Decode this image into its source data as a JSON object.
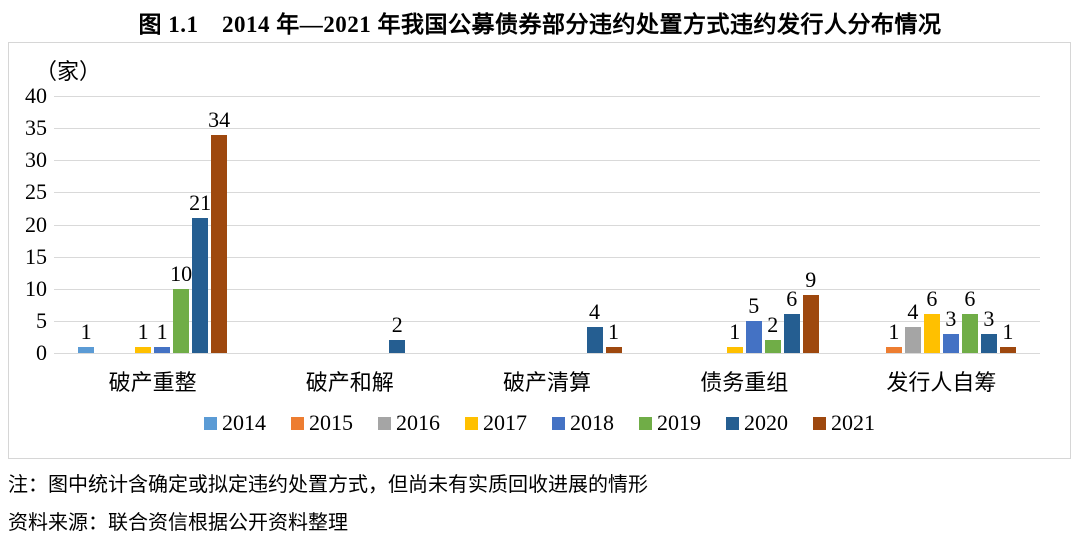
{
  "notes": {
    "note": "注：图中统计含确定或拟定违约处置方式，但尚未有实质回收进展的情形",
    "source": "资料来源：联合资信根据公开资料整理"
  },
  "chart_data": {
    "type": "bar",
    "title": "图 1.1　2014 年—2021 年我国公募债券部分违约处置方式违约发行人分布情况",
    "unit_label": "（家）",
    "ylabel": "",
    "xlabel": "",
    "categories": [
      "破产重整",
      "破产和解",
      "破产清算",
      "债务重组",
      "发行人自筹"
    ],
    "series": [
      {
        "name": "2014",
        "color": "#5B9BD5",
        "values": [
          1,
          null,
          null,
          null,
          null
        ]
      },
      {
        "name": "2015",
        "color": "#ED7D31",
        "values": [
          null,
          null,
          null,
          null,
          1
        ]
      },
      {
        "name": "2016",
        "color": "#A5A5A5",
        "values": [
          null,
          null,
          null,
          null,
          4
        ]
      },
      {
        "name": "2017",
        "color": "#FFC000",
        "values": [
          1,
          null,
          null,
          1,
          6
        ]
      },
      {
        "name": "2018",
        "color": "#4472C4",
        "values": [
          1,
          null,
          null,
          5,
          3
        ]
      },
      {
        "name": "2019",
        "color": "#70AD47",
        "values": [
          10,
          null,
          null,
          2,
          6
        ]
      },
      {
        "name": "2020",
        "color": "#255E91",
        "values": [
          21,
          2,
          4,
          6,
          3
        ]
      },
      {
        "name": "2021",
        "color": "#9E480E",
        "values": [
          34,
          null,
          1,
          9,
          1
        ]
      }
    ],
    "y_ticks": [
      0,
      5,
      10,
      15,
      20,
      25,
      30,
      35,
      40
    ],
    "ylim": [
      0,
      40
    ],
    "grid": true,
    "data_labels": true,
    "legend_position": "bottom"
  }
}
